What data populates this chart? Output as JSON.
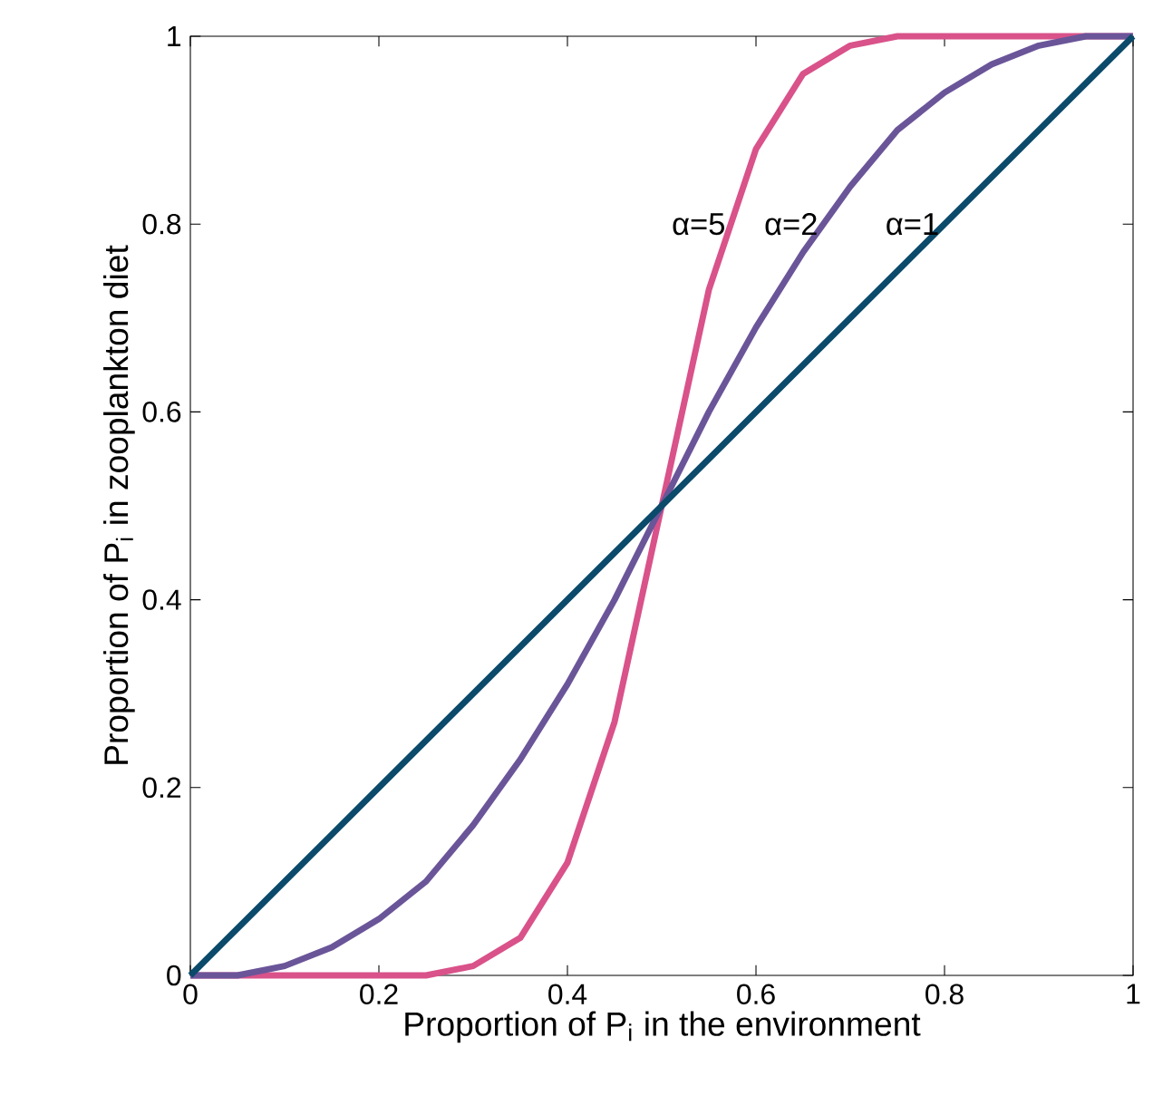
{
  "chart_data": {
    "type": "line",
    "xlabel": "Proportion of P$_{i}$ in the environment",
    "ylabel": "Proportion of P$_{i}$ in zooplankton diet",
    "x": [
      0,
      0.05,
      0.1,
      0.15,
      0.2,
      0.25,
      0.3,
      0.35,
      0.4,
      0.45,
      0.5,
      0.55,
      0.6,
      0.65,
      0.7,
      0.75,
      0.8,
      0.85,
      0.9,
      0.95,
      1
    ],
    "series": [
      {
        "name": "α=5",
        "color": "#d9528a",
        "values": [
          0,
          0,
          0,
          0,
          0,
          0,
          0.01,
          0.04,
          0.12,
          0.27,
          0.5,
          0.73,
          0.88,
          0.96,
          0.99,
          1,
          1,
          1,
          1,
          1,
          1
        ]
      },
      {
        "name": "α=2",
        "color": "#6a5599",
        "values": [
          0,
          0,
          0.01,
          0.03,
          0.06,
          0.1,
          0.16,
          0.23,
          0.31,
          0.4,
          0.5,
          0.6,
          0.69,
          0.77,
          0.84,
          0.9,
          0.94,
          0.97,
          0.99,
          1,
          1
        ]
      },
      {
        "name": "α=1",
        "color": "#0b4a6a",
        "values": [
          0,
          0.05,
          0.1,
          0.15,
          0.2,
          0.25,
          0.3,
          0.35,
          0.4,
          0.45,
          0.5,
          0.55,
          0.6,
          0.65,
          0.7,
          0.75,
          0.8,
          0.85,
          0.9,
          0.95,
          1
        ]
      }
    ],
    "xlim": [
      0,
      1
    ],
    "ylim": [
      0,
      1
    ],
    "xticks": [
      0,
      0.2,
      0.4,
      0.6,
      0.8,
      1
    ],
    "yticks": [
      0,
      0.2,
      0.4,
      0.6,
      0.8,
      1
    ],
    "grid": false,
    "legend": false,
    "marker": "none",
    "line_style": "solid"
  }
}
